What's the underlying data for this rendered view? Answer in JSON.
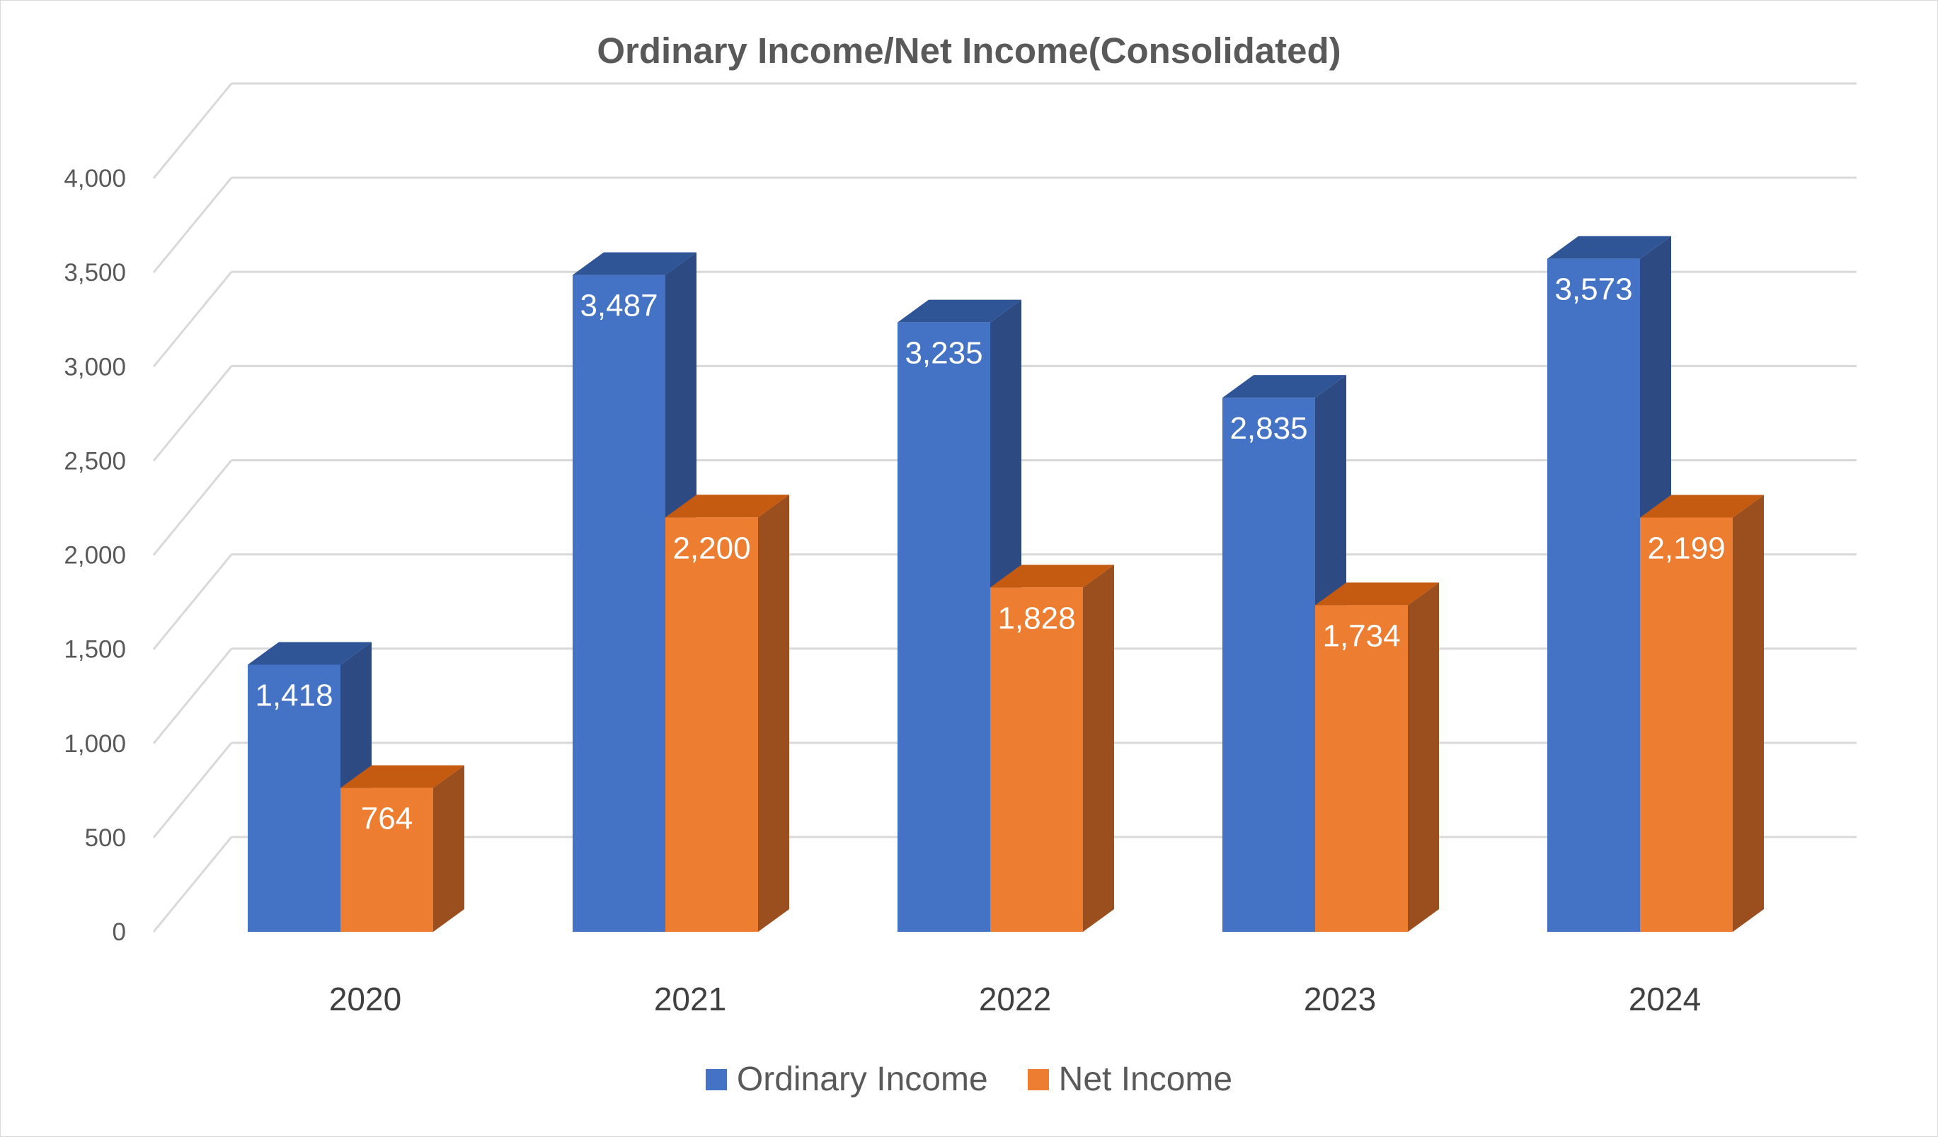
{
  "chart_data": {
    "type": "bar",
    "title": "Ordinary Income/Net Income(Consolidated)",
    "categories": [
      "2020",
      "2021",
      "2022",
      "2023",
      "2024"
    ],
    "series": [
      {
        "name": "Ordinary Income",
        "values": [
          1418,
          3487,
          3235,
          2835,
          3573
        ],
        "labels": [
          "1,418",
          "3,487",
          "3,235",
          "2,835",
          "3,573"
        ],
        "color": "#4472C4",
        "side_color": "#2E4A82",
        "top_color": "#2F5597"
      },
      {
        "name": "Net Income",
        "values": [
          764,
          2200,
          1828,
          1734,
          2199
        ],
        "labels": [
          "764",
          "2,200",
          "1,828",
          "1,734",
          "2,199"
        ],
        "color": "#ED7D31",
        "side_color": "#9C4F1E",
        "top_color": "#C55A11"
      }
    ],
    "ylim": [
      0,
      4000
    ],
    "yticks": [
      0,
      500,
      1000,
      1500,
      2000,
      2500,
      3000,
      3500,
      4000
    ],
    "ytick_labels": [
      "0",
      "500",
      "1,000",
      "1,500",
      "2,000",
      "2,500",
      "3,000",
      "3,500",
      "4,000"
    ],
    "grid": true,
    "legend_position": "bottom",
    "style": "3d-clustered-column"
  }
}
